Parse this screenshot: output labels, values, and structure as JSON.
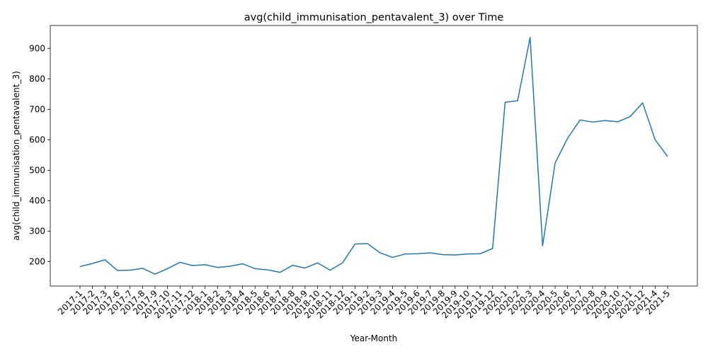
{
  "chart_data": {
    "type": "line",
    "title": "avg(child_immunisation_pentavalent_3) over Time",
    "xlabel": "Year-Month",
    "ylabel": "avg(child_immunisation_pentavalent_3)",
    "ylim": [
      120,
      975
    ],
    "yticks": [
      200,
      300,
      400,
      500,
      600,
      700,
      800,
      900
    ],
    "grid": false,
    "line_color": "#1f77b4",
    "categories": [
      "2017-1",
      "2017-2",
      "2017-3",
      "2017-6",
      "2017-7",
      "2017-8",
      "2017-9",
      "2017-10",
      "2017-11",
      "2017-12",
      "2018-1",
      "2018-2",
      "2018-3",
      "2018-4",
      "2018-5",
      "2018-6",
      "2018-7",
      "2018-8",
      "2018-9",
      "2018-10",
      "2018-11",
      "2018-12",
      "2019-1",
      "2019-2",
      "2019-3",
      "2019-4",
      "2019-5",
      "2019-6",
      "2019-7",
      "2019-8",
      "2019-9",
      "2019-10",
      "2019-11",
      "2019-12",
      "2020-1",
      "2020-2",
      "2020-3",
      "2020-4",
      "2020-5",
      "2020-6",
      "2020-7",
      "2020-8",
      "2020-9",
      "2020-10",
      "2020-11",
      "2020-12",
      "2021-4",
      "2021-5"
    ],
    "series": [
      {
        "values": [
          184,
          194,
          206,
          171,
          172,
          178,
          159,
          177,
          198,
          187,
          190,
          181,
          185,
          193,
          177,
          173,
          165,
          188,
          179,
          196,
          172,
          196,
          258,
          259,
          229,
          214,
          225,
          226,
          229,
          223,
          222,
          225,
          226,
          243,
          723,
          728,
          936,
          252,
          524,
          605,
          665,
          658,
          663,
          659,
          676,
          721,
          600,
          545
        ]
      }
    ]
  }
}
